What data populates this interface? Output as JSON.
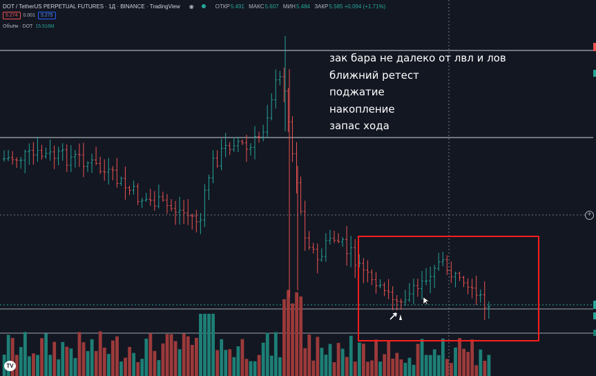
{
  "header": {
    "symbol_title": "DOT / TetherUS PERPETUAL FUTURES · 1Д · BINANCE · TradingView",
    "ohlc": [
      {
        "label": "ОТКР",
        "value": "5.491"
      },
      {
        "label": "МАКС",
        "value": "5.607"
      },
      {
        "label": "МИН",
        "value": "5.484"
      },
      {
        "label": "ЗАКР",
        "value": "5.585 +0.094 (+1.71%)"
      }
    ]
  },
  "trade_buttons": {
    "sell_price": "5.274",
    "spread": "0.001",
    "buy_price": "5.275"
  },
  "volume_indicator": {
    "label": "Объём · DOT",
    "value": "15.516M"
  },
  "annotations": {
    "notes": [
      "зак бара не далеко от лвл и лов",
      "ближний ретест",
      "поджатие",
      "накопление",
      "запас хода"
    ]
  },
  "logo": {
    "text": "TV"
  },
  "colors": {
    "background": "#131722",
    "bull": "#26a69a",
    "bear": "#ef5350",
    "bull_volume": "#1e7f76",
    "bear_volume": "#9c3a3a",
    "level_line": "#d1d4dc",
    "highlight_box": "#ff1e1e",
    "annotation_text": "#ffffff"
  },
  "icons": {
    "eye_icon": "eye",
    "live_dot": "dot",
    "crosshair": "cross",
    "add_button": "plus-circle",
    "tv_logo": "tradingview-logo",
    "cursor": "arrow-cursor"
  }
}
